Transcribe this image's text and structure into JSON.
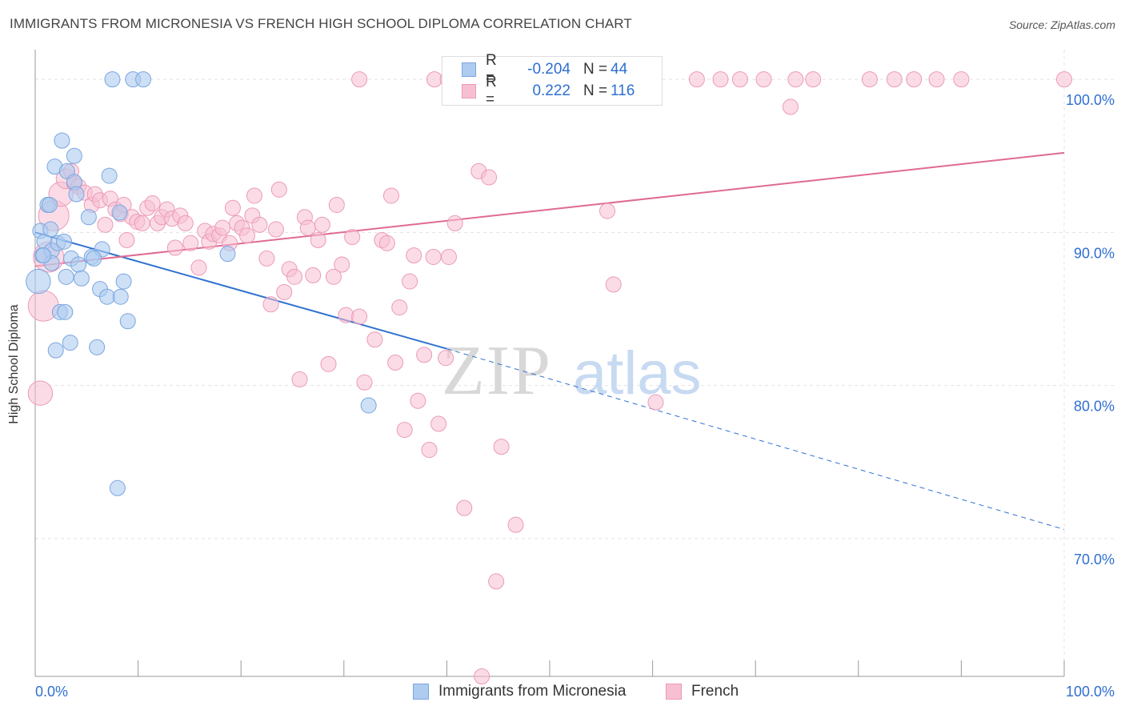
{
  "title": "IMMIGRANTS FROM MICRONESIA VS FRENCH HIGH SCHOOL DIPLOMA CORRELATION CHART",
  "source": "Source: ZipAtlas.com",
  "watermark": {
    "zip": "ZIP",
    "atlas": "atlas"
  },
  "colors": {
    "blue_fill": "#aecbf0",
    "blue_stroke": "#7aa6e0",
    "blue_line": "#2f72d0",
    "pink_fill": "#f7c0d2",
    "pink_stroke": "#ec9ab8",
    "pink_line": "#e06a92",
    "value_text": "#2f6fd0",
    "grid": "#e3e3e3"
  },
  "legend_top": {
    "rows": [
      {
        "r_label": "R =",
        "r_value": "-0.204",
        "n_label": "N =",
        "n_value": "44"
      },
      {
        "r_label": "R =",
        "r_value": "0.222",
        "n_label": "N =",
        "n_value": "116"
      }
    ]
  },
  "legend_bottom": {
    "items": [
      "Immigrants from Micronesia",
      "French"
    ]
  },
  "chart_data": {
    "type": "scatter",
    "xlabel": "",
    "ylabel": "High School Diploma",
    "xlim": [
      0,
      100
    ],
    "ylim": [
      61,
      101
    ],
    "x_ticks_labeled": [
      "0.0%",
      "100.0%"
    ],
    "y_ticks": [
      {
        "value": 70,
        "label": "70.0%"
      },
      {
        "value": 80,
        "label": "80.0%"
      },
      {
        "value": 90,
        "label": "90.0%"
      },
      {
        "value": 100,
        "label": "100.0%"
      }
    ],
    "grid": true,
    "legend_position": "bottom",
    "series": [
      {
        "name": "Immigrants from Micronesia",
        "r": -0.204,
        "n": 44,
        "trend": {
          "x0": 0,
          "y0": 90.0,
          "x1": 40,
          "y1": 82.4,
          "dash_to_x": 100,
          "dash_to_y": 70.6
        },
        "points": [
          [
            0.3,
            86.8,
            1.6
          ],
          [
            0.5,
            90.1,
            1
          ],
          [
            0.7,
            88.5,
            1
          ],
          [
            0.9,
            89.4,
            1
          ],
          [
            1.2,
            91.8,
            1
          ],
          [
            1.5,
            90.2,
            1
          ],
          [
            1.6,
            88.8,
            1
          ],
          [
            1.6,
            88.0,
            1
          ],
          [
            1.9,
            94.3,
            1
          ],
          [
            2.0,
            82.3,
            1
          ],
          [
            2.2,
            89.3,
            1
          ],
          [
            2.4,
            84.8,
            1
          ],
          [
            2.6,
            96.0,
            1
          ],
          [
            2.9,
            84.8,
            1
          ],
          [
            3.0,
            87.1,
            1
          ],
          [
            3.1,
            94.0,
            1
          ],
          [
            3.4,
            82.8,
            1
          ],
          [
            3.5,
            88.3,
            1
          ],
          [
            3.8,
            95.0,
            1
          ],
          [
            3.8,
            93.3,
            1
          ],
          [
            4.0,
            92.5,
            1
          ],
          [
            4.2,
            87.9,
            1
          ],
          [
            4.5,
            87.0,
            1
          ],
          [
            5.2,
            91.0,
            1
          ],
          [
            5.5,
            88.4,
            1
          ],
          [
            6.0,
            82.5,
            1
          ],
          [
            6.3,
            86.3,
            1
          ],
          [
            6.5,
            88.9,
            1
          ],
          [
            7.0,
            85.8,
            1
          ],
          [
            7.2,
            93.7,
            1
          ],
          [
            7.5,
            100.0,
            1
          ],
          [
            8.0,
            73.3,
            1
          ],
          [
            8.2,
            91.3,
            1
          ],
          [
            8.3,
            85.8,
            1
          ],
          [
            8.6,
            86.8,
            1
          ],
          [
            9.0,
            84.2,
            1
          ],
          [
            9.5,
            100.0,
            1
          ],
          [
            10.5,
            100.0,
            1
          ],
          [
            18.7,
            88.6,
            1
          ],
          [
            32.4,
            78.7,
            1
          ],
          [
            0.8,
            88.5,
            1
          ],
          [
            1.4,
            91.8,
            1
          ],
          [
            2.8,
            89.4,
            1
          ],
          [
            5.7,
            88.3,
            1
          ]
        ]
      },
      {
        "name": "French",
        "r": 0.222,
        "n": 116,
        "trend": {
          "x0": 0,
          "y0": 87.8,
          "x1": 100,
          "y1": 95.2
        },
        "points": [
          [
            0.5,
            79.5,
            1.6
          ],
          [
            0.8,
            85.2,
            2.0
          ],
          [
            1.3,
            88.4,
            2.0
          ],
          [
            1.8,
            91.1,
            2.0
          ],
          [
            2.5,
            92.5,
            1.6
          ],
          [
            3.0,
            93.5,
            1.3
          ],
          [
            3.5,
            94.0,
            1
          ],
          [
            3.8,
            93.2,
            1
          ],
          [
            4.2,
            93.0,
            1
          ],
          [
            4.8,
            92.6,
            1
          ],
          [
            5.5,
            91.8,
            1
          ],
          [
            5.8,
            92.5,
            1
          ],
          [
            6.3,
            92.1,
            1
          ],
          [
            6.8,
            90.5,
            1
          ],
          [
            7.3,
            92.2,
            1
          ],
          [
            7.8,
            91.5,
            1
          ],
          [
            8.3,
            91.2,
            1
          ],
          [
            8.6,
            91.8,
            1
          ],
          [
            8.9,
            89.5,
            1
          ],
          [
            9.4,
            91.0,
            1
          ],
          [
            9.9,
            90.7,
            1
          ],
          [
            10.4,
            90.6,
            1
          ],
          [
            10.9,
            91.6,
            1
          ],
          [
            11.4,
            91.9,
            1
          ],
          [
            11.9,
            90.6,
            1
          ],
          [
            12.3,
            91.0,
            1
          ],
          [
            12.8,
            91.5,
            1
          ],
          [
            13.3,
            90.9,
            1
          ],
          [
            13.6,
            89.0,
            1
          ],
          [
            14.1,
            91.1,
            1
          ],
          [
            14.6,
            90.6,
            1
          ],
          [
            15.1,
            89.3,
            1
          ],
          [
            15.9,
            87.7,
            1
          ],
          [
            16.5,
            90.1,
            1
          ],
          [
            16.9,
            89.4,
            1
          ],
          [
            17.3,
            89.9,
            1
          ],
          [
            17.9,
            89.8,
            1
          ],
          [
            18.2,
            90.3,
            1
          ],
          [
            18.9,
            89.3,
            1
          ],
          [
            19.2,
            91.6,
            1
          ],
          [
            19.6,
            90.6,
            1
          ],
          [
            20.1,
            90.3,
            1
          ],
          [
            20.6,
            89.8,
            1
          ],
          [
            21.1,
            91.1,
            1
          ],
          [
            21.3,
            92.4,
            1
          ],
          [
            21.8,
            90.5,
            1
          ],
          [
            22.5,
            88.3,
            1
          ],
          [
            22.9,
            85.3,
            1
          ],
          [
            23.4,
            90.2,
            1
          ],
          [
            23.7,
            92.8,
            1
          ],
          [
            24.2,
            86.1,
            1
          ],
          [
            24.7,
            87.6,
            1
          ],
          [
            25.2,
            87.1,
            1
          ],
          [
            25.7,
            80.4,
            1
          ],
          [
            26.2,
            91.0,
            1
          ],
          [
            26.5,
            90.3,
            1
          ],
          [
            27.0,
            87.2,
            1
          ],
          [
            27.5,
            89.5,
            1
          ],
          [
            27.9,
            90.5,
            1
          ],
          [
            28.5,
            81.4,
            1
          ],
          [
            29.0,
            87.1,
            1
          ],
          [
            29.3,
            91.8,
            1
          ],
          [
            29.8,
            87.9,
            1
          ],
          [
            30.2,
            84.6,
            1
          ],
          [
            30.8,
            89.7,
            1
          ],
          [
            31.5,
            84.5,
            1
          ],
          [
            32.0,
            80.2,
            1
          ],
          [
            33.0,
            83.0,
            1
          ],
          [
            33.7,
            89.5,
            1
          ],
          [
            34.2,
            89.3,
            1
          ],
          [
            34.6,
            92.4,
            1
          ],
          [
            35.0,
            81.5,
            1
          ],
          [
            35.4,
            85.1,
            1
          ],
          [
            35.9,
            77.1,
            1
          ],
          [
            36.4,
            86.8,
            1
          ],
          [
            36.8,
            88.5,
            1
          ],
          [
            37.2,
            79.0,
            1
          ],
          [
            37.8,
            82.0,
            1
          ],
          [
            38.3,
            75.8,
            1
          ],
          [
            38.7,
            88.4,
            1
          ],
          [
            39.2,
            77.5,
            1
          ],
          [
            39.9,
            81.8,
            1
          ],
          [
            40.2,
            88.4,
            1
          ],
          [
            40.8,
            90.6,
            1
          ],
          [
            41.7,
            72.0,
            1
          ],
          [
            43.1,
            94.0,
            1
          ],
          [
            43.4,
            61.0,
            1
          ],
          [
            44.1,
            93.6,
            1
          ],
          [
            44.8,
            67.2,
            1
          ],
          [
            45.3,
            76.0,
            1
          ],
          [
            46.7,
            70.9,
            1
          ],
          [
            55.6,
            91.4,
            1
          ],
          [
            56.2,
            86.6,
            1
          ],
          [
            60.3,
            78.9,
            1
          ],
          [
            31.5,
            100.0,
            1
          ],
          [
            38.8,
            100.0,
            1
          ],
          [
            40.1,
            100.0,
            1
          ],
          [
            43.9,
            100.0,
            1
          ],
          [
            45.4,
            100.0,
            1
          ],
          [
            48.1,
            100.0,
            1
          ],
          [
            52.4,
            100.0,
            1
          ],
          [
            56.0,
            100.0,
            1
          ],
          [
            59.1,
            100.0,
            1
          ],
          [
            64.3,
            100.0,
            1
          ],
          [
            68.5,
            100.0,
            1
          ],
          [
            70.8,
            100.0,
            1
          ],
          [
            73.9,
            100.0,
            1
          ],
          [
            75.6,
            100.0,
            1
          ],
          [
            81.1,
            100.0,
            1
          ],
          [
            83.5,
            100.0,
            1
          ],
          [
            85.4,
            100.0,
            1
          ],
          [
            87.6,
            100.0,
            1
          ],
          [
            73.4,
            98.2,
            1
          ],
          [
            100.0,
            100.0,
            1
          ],
          [
            90.0,
            100.0,
            1
          ],
          [
            66.6,
            100.0,
            1
          ]
        ]
      }
    ]
  }
}
